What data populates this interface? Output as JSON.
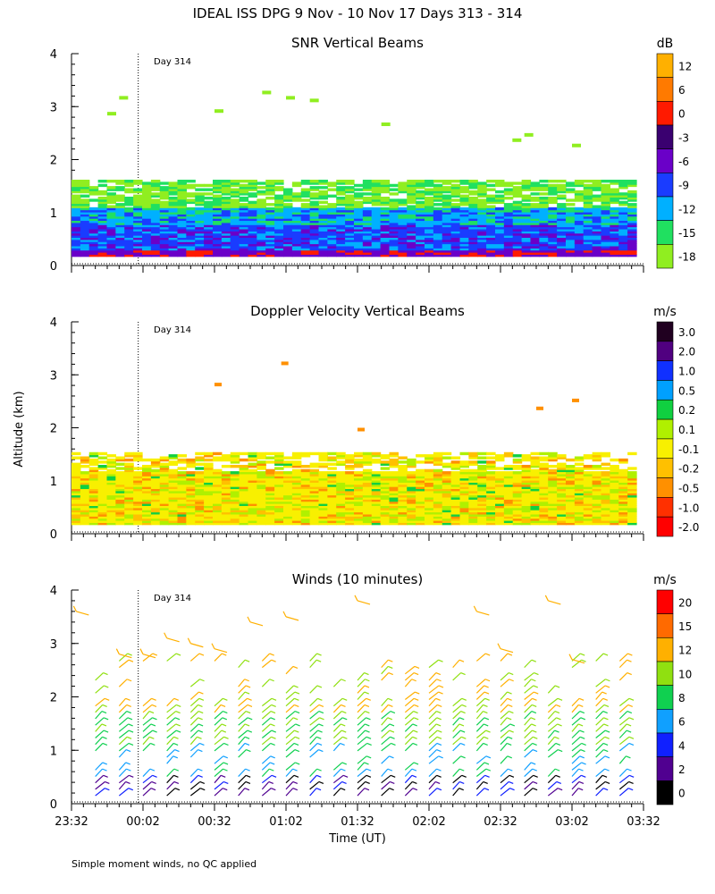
{
  "page_title": "IDEAL ISS DPG   9 Nov - 10 Nov 17 Days 313 - 314",
  "shared_ylabel": "Altitude (km)",
  "xlabel": "Time (UT)",
  "footnote": "Simple moment winds, no QC applied",
  "day_marker_label": "Day 314",
  "colors": {
    "axis": "#000000",
    "background": "#ffffff"
  },
  "chart_data": [
    {
      "type": "heatmap",
      "title": "SNR Vertical Beams",
      "units": "dB",
      "ylim": [
        0,
        4
      ],
      "yticks": [
        0,
        1,
        2,
        3,
        4
      ],
      "xlim_minutes": [
        0,
        240
      ],
      "colorbar": {
        "labels": [
          "12",
          "6",
          "0",
          "-3",
          "-6",
          "-9",
          "-12",
          "-15",
          "-18"
        ],
        "colors": [
          "#ffb000",
          "#ff7a00",
          "#ff1a00",
          "#3a0070",
          "#6a00c8",
          "#1a3cff",
          "#00b0ff",
          "#20e060",
          "#90ee20"
        ]
      }
    },
    {
      "type": "heatmap",
      "title": "Doppler Velocity Vertical Beams",
      "units": "m/s",
      "ylim": [
        0,
        4
      ],
      "yticks": [
        0,
        1,
        2,
        3,
        4
      ],
      "xlim_minutes": [
        0,
        240
      ],
      "colorbar": {
        "labels": [
          "3.0",
          "2.0",
          "1.0",
          "0.5",
          "0.2",
          "0.1",
          "-0.1",
          "-0.2",
          "-0.5",
          "-1.0",
          "-2.0"
        ],
        "colors": [
          "#200020",
          "#500080",
          "#1030ff",
          "#00a0ff",
          "#10d040",
          "#b0f000",
          "#f8f000",
          "#ffc000",
          "#ff9000",
          "#ff3000",
          "#ff0000"
        ]
      }
    },
    {
      "type": "wind_barbs",
      "title": "Winds (10 minutes)",
      "units": "m/s",
      "ylim": [
        0,
        4
      ],
      "yticks": [
        0,
        1,
        2,
        3,
        4
      ],
      "xlim_minutes": [
        0,
        240
      ],
      "colorbar": {
        "labels": [
          "20",
          "15",
          "12",
          "10",
          "8",
          "6",
          "4",
          "2",
          "0"
        ],
        "colors": [
          "#ff0000",
          "#ff6a00",
          "#ffb000",
          "#90e010",
          "#10d050",
          "#10a0ff",
          "#1020ff",
          "#500090",
          "#000000"
        ]
      }
    }
  ],
  "xaxis": {
    "tick_labels": [
      "23:32",
      "00:02",
      "00:32",
      "01:02",
      "01:32",
      "02:02",
      "02:32",
      "03:02",
      "03:32"
    ],
    "tick_minutes": [
      0,
      30,
      60,
      90,
      120,
      150,
      180,
      210,
      240
    ],
    "day_marker_minutes": 28,
    "data_end_minutes": 237
  },
  "wind_columns_minutes": [
    10,
    20,
    30,
    40,
    50,
    60,
    70,
    80,
    90,
    100,
    110,
    120,
    130,
    140,
    150,
    160,
    170,
    180,
    190,
    200,
    210,
    220,
    230
  ]
}
